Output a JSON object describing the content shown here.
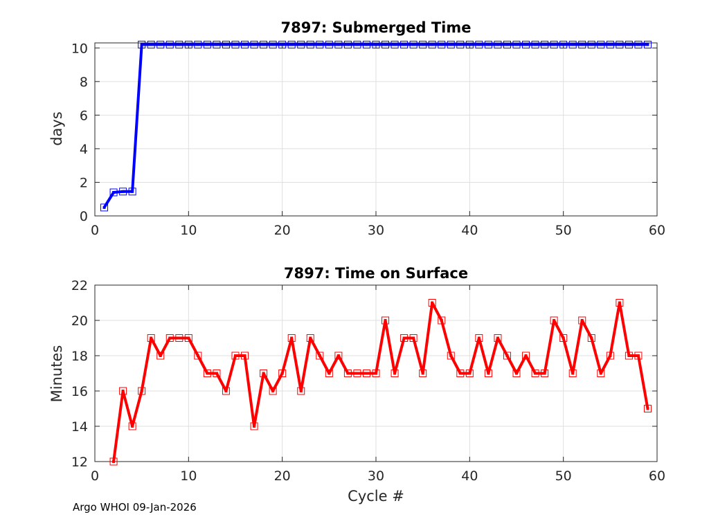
{
  "figure": {
    "footer": "Argo WHOI 09-Jan-2026"
  },
  "chart_data": [
    {
      "type": "line",
      "title": "7897: Submerged Time",
      "xlabel": "",
      "ylabel": "days",
      "xlim": [
        0,
        60
      ],
      "ylim": [
        0,
        10.3
      ],
      "xticks": [
        0,
        10,
        20,
        30,
        40,
        50,
        60
      ],
      "yticks": [
        0,
        2,
        4,
        6,
        8,
        10
      ],
      "grid": true,
      "series": [
        {
          "color": "#0000ff",
          "marker": "square",
          "x": [
            1,
            2,
            3,
            4,
            5,
            6,
            7,
            8,
            9,
            10,
            11,
            12,
            13,
            14,
            15,
            16,
            17,
            18,
            19,
            20,
            21,
            22,
            23,
            24,
            25,
            26,
            27,
            28,
            29,
            30,
            31,
            32,
            33,
            34,
            35,
            36,
            37,
            38,
            39,
            40,
            41,
            42,
            43,
            44,
            45,
            46,
            47,
            48,
            49,
            50,
            51,
            52,
            53,
            54,
            55,
            56,
            57,
            58,
            59
          ],
          "values": [
            0.5,
            1.4,
            1.45,
            1.45,
            10.2,
            10.2,
            10.2,
            10.2,
            10.2,
            10.2,
            10.2,
            10.2,
            10.2,
            10.2,
            10.2,
            10.2,
            10.2,
            10.2,
            10.2,
            10.2,
            10.2,
            10.2,
            10.2,
            10.2,
            10.2,
            10.2,
            10.2,
            10.2,
            10.2,
            10.2,
            10.2,
            10.2,
            10.2,
            10.2,
            10.2,
            10.2,
            10.2,
            10.2,
            10.2,
            10.2,
            10.2,
            10.2,
            10.2,
            10.2,
            10.2,
            10.2,
            10.2,
            10.2,
            10.2,
            10.2,
            10.2,
            10.2,
            10.2,
            10.2,
            10.2,
            10.2,
            10.2,
            10.2,
            10.2
          ]
        }
      ]
    },
    {
      "type": "line",
      "title": "7897: Time on Surface",
      "xlabel": "Cycle #",
      "ylabel": "Minutes",
      "xlim": [
        0,
        60
      ],
      "ylim": [
        12,
        22
      ],
      "xticks": [
        0,
        10,
        20,
        30,
        40,
        50,
        60
      ],
      "yticks": [
        12,
        14,
        16,
        18,
        20,
        22
      ],
      "grid": true,
      "series": [
        {
          "color": "#ff0000",
          "marker": "square",
          "x": [
            2,
            3,
            4,
            5,
            6,
            7,
            8,
            9,
            10,
            11,
            12,
            13,
            14,
            15,
            16,
            17,
            18,
            19,
            20,
            21,
            22,
            23,
            24,
            25,
            26,
            27,
            28,
            29,
            30,
            31,
            32,
            33,
            34,
            35,
            36,
            37,
            38,
            39,
            40,
            41,
            42,
            43,
            44,
            45,
            46,
            47,
            48,
            49,
            50,
            51,
            52,
            53,
            54,
            55,
            56,
            57,
            58,
            59
          ],
          "values": [
            12,
            16,
            14,
            16,
            19,
            18,
            19,
            19,
            19,
            18,
            17,
            17,
            16,
            18,
            18,
            14,
            17,
            16,
            17,
            19,
            16,
            19,
            18,
            17,
            18,
            17,
            17,
            17,
            17,
            20,
            17,
            19,
            19,
            17,
            21,
            20,
            18,
            17,
            17,
            19,
            17,
            19,
            18,
            17,
            18,
            17,
            17,
            20,
            19,
            17,
            20,
            19,
            17,
            18,
            21,
            18,
            18,
            15
          ]
        }
      ]
    }
  ]
}
